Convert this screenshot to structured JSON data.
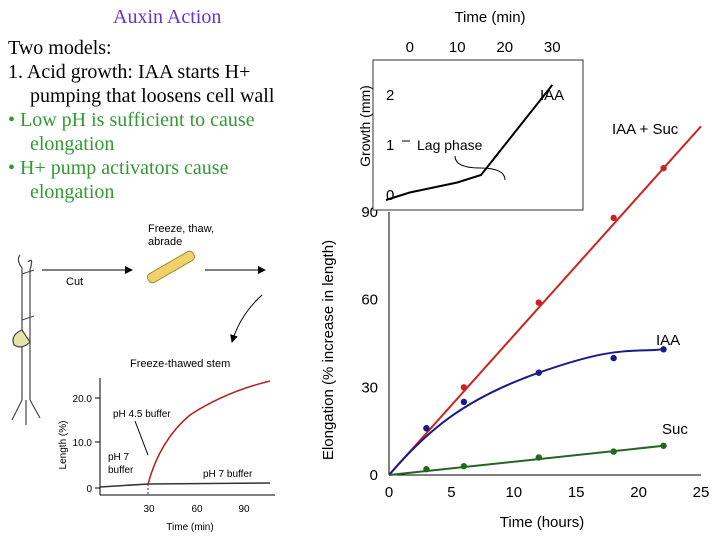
{
  "slide": {
    "title": "Auxin Action",
    "intro": "Two models:",
    "model1_line1": "1. Acid growth: IAA starts H+",
    "model1_line2": "pumping that loosens cell wall",
    "bullet1_line1": "• Low pH is sufficient to cause",
    "bullet1_line2": "elongation",
    "bullet2_line1": "• H+ pump activators cause",
    "bullet2_line2": "elongation"
  },
  "colors": {
    "title": "#6633cc",
    "bullet": "#339933",
    "red_curve": "#cc2222",
    "blue_curve": "#1a1a88",
    "green_curve": "#226622"
  },
  "experiment": {
    "step1": "Freeze, thaw,",
    "step2": "abrade",
    "cut": "Cut",
    "stem": "Freeze-thawed stem",
    "ylabel": "Length (%)",
    "xlabel": "Time (min)",
    "y_ticks": [
      "20.0",
      "10.0",
      "0"
    ],
    "x_ticks": [
      "30",
      "60",
      "90"
    ],
    "label_ph45": "pH 4.5 buffer",
    "label_ph7a": "pH 7",
    "label_ph7b": "buffer",
    "label_ph7c": "pH 7 buffer"
  },
  "chart_data": [
    {
      "type": "line",
      "title": "",
      "xlabel": "Time (hours)",
      "ylabel": "Elongation (% increase in length)",
      "xlim": [
        0,
        25
      ],
      "ylim": [
        0,
        90
      ],
      "x_ticks": [
        "0",
        "5",
        "10",
        "15",
        "20",
        "25"
      ],
      "y_ticks": [
        "0",
        "30",
        "60",
        "90"
      ],
      "series": [
        {
          "name": "IAA + Suc",
          "x": [
            3,
            6,
            12,
            18,
            22
          ],
          "values": [
            16,
            30,
            59,
            88,
            105
          ]
        },
        {
          "name": "IAA",
          "x": [
            3,
            6,
            12,
            18,
            22
          ],
          "values": [
            16,
            25,
            35,
            40,
            43
          ]
        },
        {
          "name": "Suc",
          "x": [
            3,
            6,
            12,
            18,
            22
          ],
          "values": [
            2,
            3,
            6,
            8,
            10
          ]
        }
      ]
    },
    {
      "type": "line",
      "title": "",
      "xlabel": "Time (min)",
      "ylabel": "Growth (mm)",
      "xlim": [
        -5,
        35
      ],
      "ylim": [
        0,
        2.5
      ],
      "x_ticks": [
        "0",
        "10",
        "20",
        "30"
      ],
      "y_ticks": [
        "0",
        "1",
        "2"
      ],
      "annotation": "Lag phase",
      "series": [
        {
          "name": "IAA",
          "x": [
            -5,
            0,
            10,
            15,
            20,
            25,
            30
          ],
          "values": [
            -0.1,
            0.05,
            0.25,
            0.4,
            1.0,
            1.6,
            2.2
          ]
        }
      ]
    }
  ]
}
